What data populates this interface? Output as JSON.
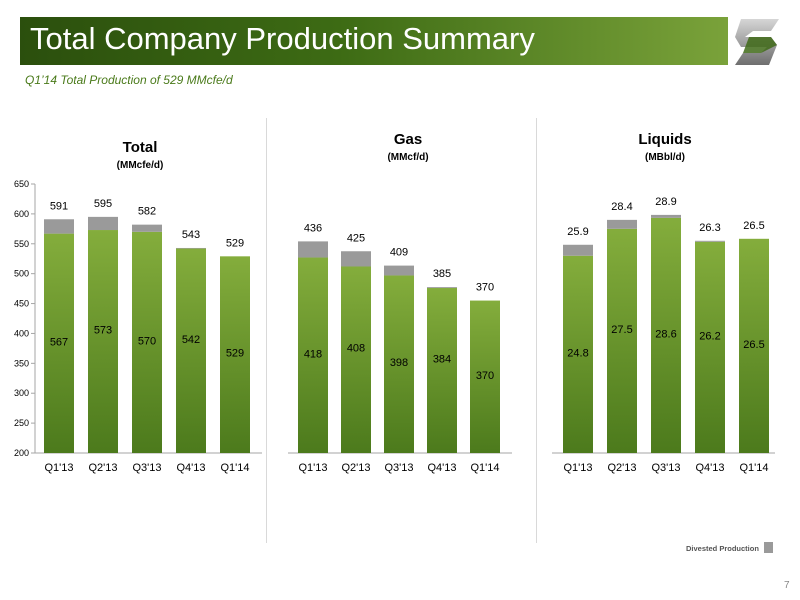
{
  "header": {
    "title": "Total Company Production Summary"
  },
  "subtitle": "Q1’14 Total Production of 529 MMcfe/d",
  "legend": {
    "label": "Divested Production",
    "color": "#9a9a9a"
  },
  "page_number": "7",
  "colors": {
    "green_top": "#84ad3c",
    "green_bottom": "#4c7a1c",
    "divested": "#9a9a9a",
    "header_dark": "#2b4f0d"
  },
  "chart_data": [
    {
      "type": "bar",
      "title": "Total",
      "unit": "(MMcfe/d)",
      "categories": [
        "Q1'13",
        "Q2'13",
        "Q3'13",
        "Q4'13",
        "Q1'14"
      ],
      "series": [
        {
          "name": "",
          "values": [
            567,
            573,
            570,
            542,
            529
          ]
        },
        {
          "name": "Divested Production",
          "values": [
            24,
            22,
            12,
            1,
            0
          ]
        }
      ],
      "totals": [
        591,
        595,
        582,
        543,
        529
      ],
      "ylim": [
        200,
        650
      ],
      "yticks": [
        200,
        250,
        300,
        350,
        400,
        450,
        500,
        550,
        600,
        650
      ],
      "show_y_axis": true
    },
    {
      "type": "bar",
      "title": "Gas",
      "unit": "(MMcf/d)",
      "categories": [
        "Q1'13",
        "Q2'13",
        "Q3'13",
        "Q4'13",
        "Q1'14"
      ],
      "series": [
        {
          "name": "",
          "values": [
            418,
            408,
            398,
            384,
            370
          ]
        },
        {
          "name": "Divested Production",
          "values": [
            18,
            17,
            11,
            1,
            0
          ]
        }
      ],
      "totals": [
        436,
        425,
        409,
        385,
        370
      ],
      "ylim": [
        200,
        500
      ],
      "show_y_axis": false
    },
    {
      "type": "bar",
      "title": "Liquids",
      "unit": "(MBbl/d)",
      "categories": [
        "Q1'13",
        "Q2'13",
        "Q3'13",
        "Q4'13",
        "Q1'14"
      ],
      "series": [
        {
          "name": "",
          "values": [
            24.8,
            27.5,
            28.6,
            26.2,
            26.5
          ]
        },
        {
          "name": "Divested Production",
          "values": [
            1.1,
            0.9,
            0.3,
            0.1,
            0
          ]
        }
      ],
      "totals": [
        25.9,
        28.4,
        28.9,
        26.3,
        26.5
      ],
      "ylim": [
        5,
        32
      ],
      "show_y_axis": false
    }
  ]
}
